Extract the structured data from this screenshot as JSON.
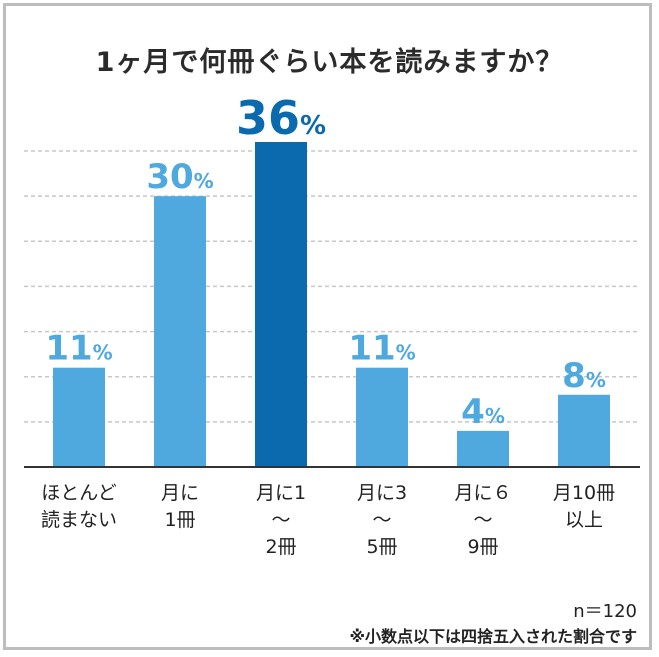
{
  "title": "1ヶ月で何冊ぐらい本を読みますか？",
  "sample_size": "n＝120",
  "note": "※小数点以下は四捨五入された割合です",
  "colors": {
    "bar": "#4fa9df",
    "highlight": "#0a6aad",
    "grid": "#c8c8c8",
    "axis": "#333333"
  },
  "chart_data": {
    "type": "bar",
    "categories": [
      [
        "ほとんど",
        "読まない"
      ],
      [
        "月に",
        "1冊"
      ],
      [
        "月に1",
        "〜",
        "2冊"
      ],
      [
        "月に3",
        "〜",
        "5冊"
      ],
      [
        "月に６",
        "〜",
        "9冊"
      ],
      [
        "月10冊",
        "以上"
      ]
    ],
    "values": [
      11,
      30,
      36,
      11,
      4,
      8
    ],
    "unit": "%",
    "highlight_index": 2,
    "ylim": [
      0,
      36
    ],
    "grid": true
  }
}
